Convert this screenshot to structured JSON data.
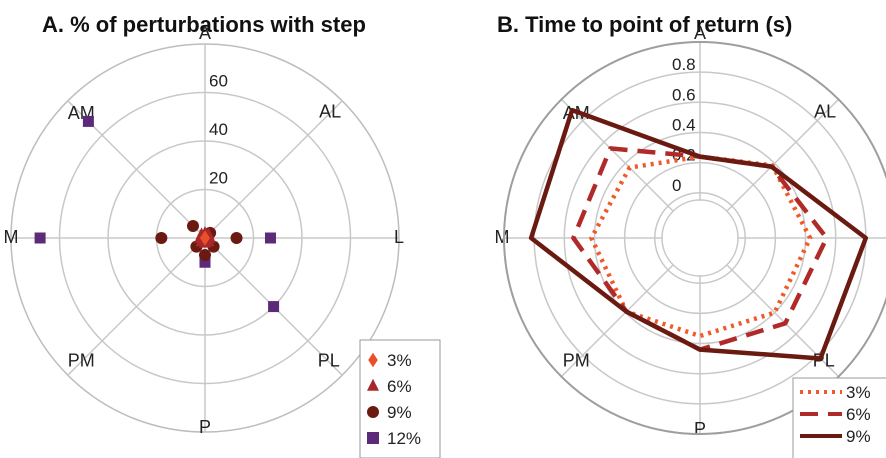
{
  "chart_data": [
    {
      "type": "scatter",
      "coordinate_system": "polar",
      "title": "A. % of perturbations with step",
      "directions": [
        "A",
        "AL",
        "L",
        "PL",
        "P",
        "PM",
        "M",
        "AM"
      ],
      "radial_ticks": [
        "20",
        "40",
        "60"
      ],
      "rlim": [
        0,
        80
      ],
      "grid": true,
      "legend_position": "bottom-right",
      "series": [
        {
          "name": "3%",
          "color": "#e8502a",
          "marker": "diamond",
          "values": [
            0,
            0,
            0,
            0,
            0,
            0,
            0,
            0
          ]
        },
        {
          "name": "6%",
          "color": "#a8282a",
          "marker": "triangle",
          "values": [
            2,
            2,
            2,
            2,
            2,
            2,
            2,
            2
          ]
        },
        {
          "name": "9%",
          "color": "#6b1a12",
          "marker": "circle",
          "values": [
            1,
            3,
            13,
            5,
            7,
            5,
            18,
            7
          ]
        },
        {
          "name": "12%",
          "color": "#5c2a78",
          "marker": "square",
          "values": [
            1,
            1,
            27,
            40,
            10,
            1,
            68,
            68
          ]
        }
      ]
    },
    {
      "type": "line",
      "coordinate_system": "polar",
      "title": "B. Time to point of return (s)",
      "directions": [
        "A",
        "AL",
        "L",
        "PL",
        "P",
        "PM",
        "M",
        "AM"
      ],
      "radial_ticks": [
        "0",
        "0.2",
        "0.4",
        "0.6",
        "0.8"
      ],
      "rlim": [
        -0.3,
        1.0
      ],
      "grid": true,
      "legend_position": "bottom-right",
      "series": [
        {
          "name": "3%",
          "color": "#f05a2a",
          "dash": "dotted",
          "values": [
            0.24,
            0.38,
            0.43,
            0.4,
            0.35,
            0.39,
            0.42,
            0.36
          ]
        },
        {
          "name": "6%",
          "color": "#b02a2a",
          "dash": "dashed",
          "values": [
            0.24,
            0.37,
            0.54,
            0.5,
            0.44,
            0.39,
            0.54,
            0.54
          ]
        },
        {
          "name": "9%",
          "color": "#6b1a12",
          "dash": "solid",
          "values": [
            0.24,
            0.37,
            0.8,
            0.83,
            0.44,
            0.39,
            0.82,
            0.9
          ]
        }
      ]
    }
  ]
}
